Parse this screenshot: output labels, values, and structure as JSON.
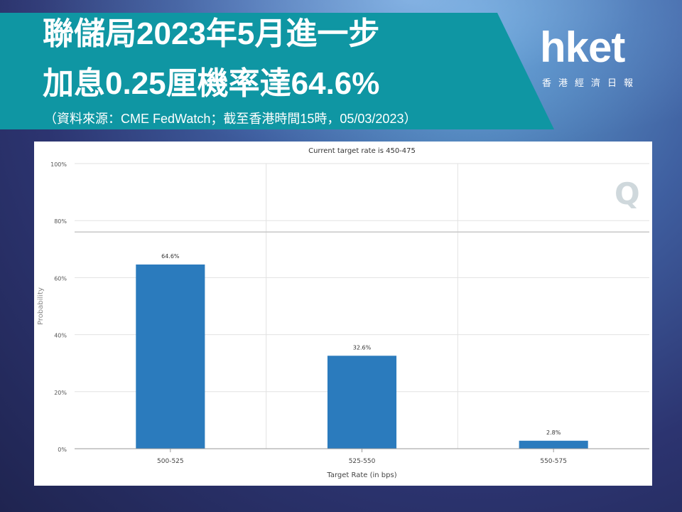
{
  "header": {
    "title_line1": "聯儲局2023年5月進一步",
    "title_line2": "加息0.25厘機率達64.6%",
    "source": "（資料來源：CME FedWatch；截至香港時間15時，05/03/2023）"
  },
  "logo": {
    "word": "hket",
    "subtitle": "香港經濟日報"
  },
  "colors": {
    "banner": "#0f96a3",
    "bar": "#2b7bbd",
    "grid": "#e2e2e2"
  },
  "chart_data": {
    "type": "bar",
    "title": "Current target rate is 450-475",
    "xlabel": "Target Rate (in bps)",
    "ylabel": "Probability",
    "categories": [
      "500-525",
      "525-550",
      "550-575"
    ],
    "values": [
      64.6,
      32.6,
      2.8
    ],
    "value_labels": [
      "64.6%",
      "32.6%",
      "2.8%"
    ],
    "ylim": [
      0,
      100
    ],
    "yticks": [
      0,
      20,
      40,
      60,
      80,
      100
    ],
    "ytick_labels": [
      "0%",
      "20%",
      "40%",
      "60%",
      "80%",
      "100%"
    ],
    "grid": true,
    "reference_line": 76,
    "watermark": "Q"
  }
}
